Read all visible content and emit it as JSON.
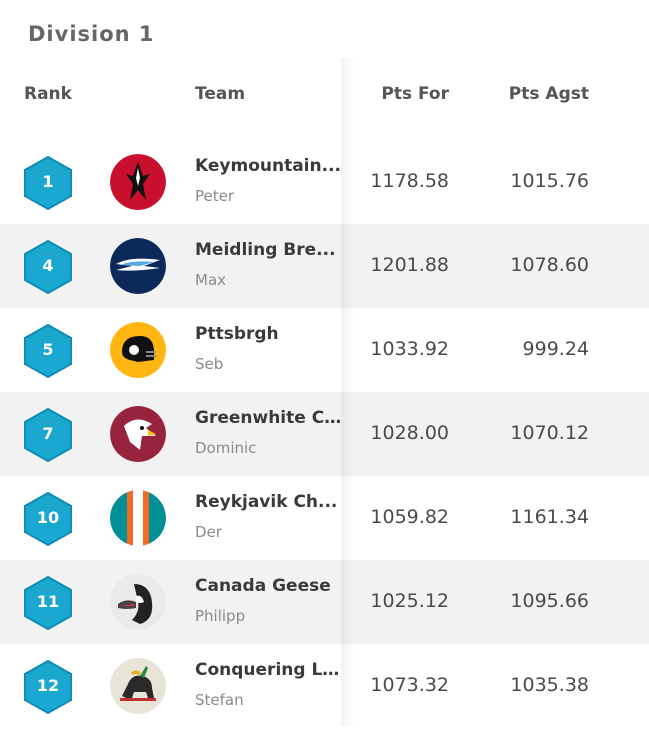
{
  "division": {
    "title": "Division 1"
  },
  "headers": {
    "rank": "Rank",
    "team": "Team",
    "pts_for": "Pts For",
    "pts_agst": "Pts Agst"
  },
  "colors": {
    "badge": "#1aa7d0",
    "badge_dark": "#0f8db4",
    "row_alt": "#f2f2f2"
  },
  "teams": [
    {
      "rank": "1",
      "name": "Keymountain...",
      "owner": "Peter",
      "pts_for": "1178.58",
      "pts_agst": "1015.76",
      "logo": "falcon-logo-icon"
    },
    {
      "rank": "4",
      "name": "Meidling Bre...",
      "owner": "Max",
      "pts_for": "1201.88",
      "pts_agst": "1078.60",
      "logo": "bolt-logo-icon"
    },
    {
      "rank": "5",
      "name": "Pttsbrgh",
      "owner": "Seb",
      "pts_for": "1033.92",
      "pts_agst": "999.24",
      "logo": "helmet-logo-icon"
    },
    {
      "rank": "7",
      "name": "Greenwhite C...",
      "owner": "Dominic",
      "pts_for": "1028.00",
      "pts_agst": "1070.12",
      "logo": "cardinal-logo-icon"
    },
    {
      "rank": "10",
      "name": "Reykjavik Ch...",
      "owner": "Der",
      "pts_for": "1059.82",
      "pts_agst": "1161.34",
      "logo": "stripes-logo-icon"
    },
    {
      "rank": "11",
      "name": "Canada Geese",
      "owner": "Philipp",
      "pts_for": "1025.12",
      "pts_agst": "1095.66",
      "logo": "goose-logo-icon"
    },
    {
      "rank": "12",
      "name": "Conquering Li...",
      "owner": "Stefan",
      "pts_for": "1073.32",
      "pts_agst": "1035.38",
      "logo": "lion-logo-icon"
    }
  ]
}
